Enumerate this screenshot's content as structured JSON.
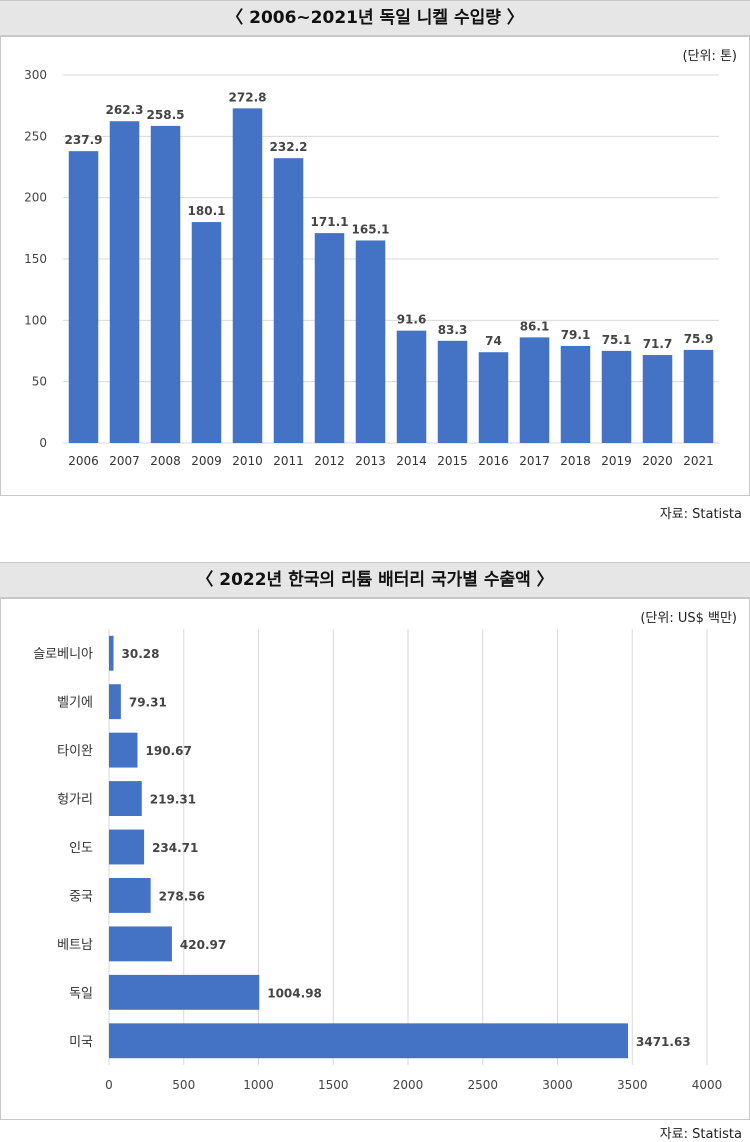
{
  "charts": [
    {
      "title": "〈 2006~2021년 독일 니켈 수입량 〉",
      "unit": "(단위: 톤)",
      "source": "자료: Statista",
      "color": "#4472c4"
    },
    {
      "title": "〈 2022년 한국의 리튬 배터리 국가별 수출액 〉",
      "unit": "(단위: US$ 백만)",
      "source": "자료: Statista",
      "color": "#4472c4"
    }
  ],
  "chart_data": [
    {
      "type": "bar",
      "orientation": "vertical",
      "categories": [
        "2006",
        "2007",
        "2008",
        "2009",
        "2010",
        "2011",
        "2012",
        "2013",
        "2014",
        "2015",
        "2016",
        "2017",
        "2018",
        "2019",
        "2020",
        "2021"
      ],
      "values": [
        237.9,
        262.3,
        258.5,
        180.1,
        272.8,
        232.2,
        171.1,
        165.1,
        91.6,
        83.3,
        74,
        86.1,
        79.1,
        75.1,
        71.7,
        75.9
      ],
      "labels": [
        "237.9",
        "262.3",
        "258.5",
        "180.1",
        "272.8",
        "232.2",
        "171.1",
        "165.1",
        "91.6",
        "83.3",
        "74",
        "86.1",
        "79.1",
        "75.1",
        "71.7",
        "75.9"
      ],
      "ylim": [
        0,
        300
      ],
      "yticks": [
        "0",
        "50",
        "100",
        "150",
        "200",
        "250",
        "300"
      ],
      "grid": true
    },
    {
      "type": "bar",
      "orientation": "horizontal",
      "categories": [
        "슬로베니아",
        "벨기에",
        "타이완",
        "헝가리",
        "인도",
        "중국",
        "베트남",
        "독일",
        "미국"
      ],
      "values": [
        30.28,
        79.31,
        190.67,
        219.31,
        234.71,
        278.56,
        420.97,
        1004.98,
        3471.63
      ],
      "labels": [
        "30.28",
        "79.31",
        "190.67",
        "219.31",
        "234.71",
        "278.56",
        "420.97",
        "1004.98",
        "3471.63"
      ],
      "xlim": [
        0,
        4000
      ],
      "xticks": [
        "0",
        "500",
        "1000",
        "1500",
        "2000",
        "2500",
        "3000",
        "3500",
        "4000"
      ],
      "grid": true
    }
  ]
}
